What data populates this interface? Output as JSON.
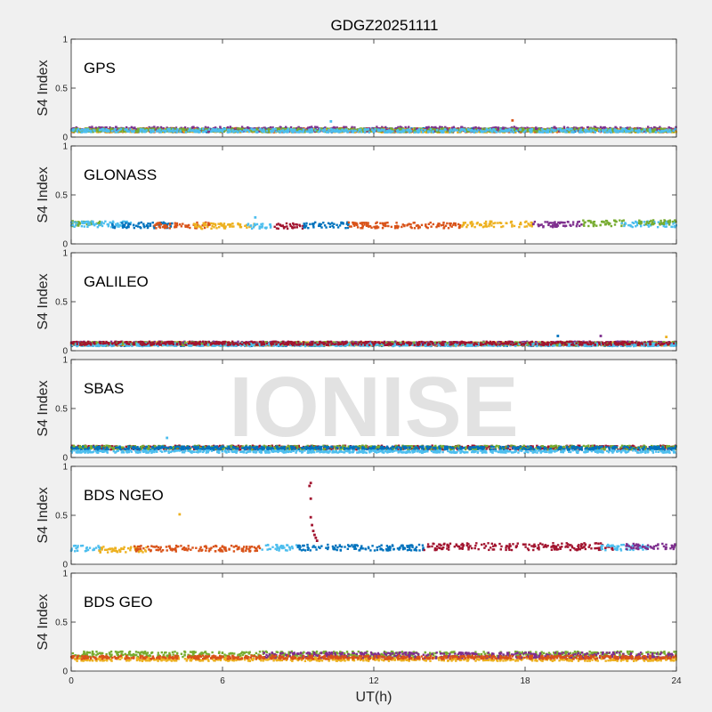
{
  "chart_data": {
    "type": "scatter",
    "title": "GDGZ20251111",
    "xlabel": "UT(h)",
    "ylabel": "S4 Index",
    "xlim": [
      0,
      24
    ],
    "ylim": [
      0,
      1
    ],
    "xticks": [
      "0",
      "6",
      "12",
      "18",
      "24"
    ],
    "yticks": [
      "0",
      "0.5",
      "1"
    ],
    "watermark": "IONISE",
    "grid": false,
    "palette": [
      "#0072bd",
      "#d95319",
      "#edb120",
      "#7e2f8e",
      "#77ac30",
      "#4dbeee",
      "#a2142f"
    ],
    "panels": [
      {
        "label": "GPS",
        "baseline": 0.07,
        "segments": [
          {
            "color": "#0072bd",
            "x": [
              0,
              24
            ],
            "mean": 0.07,
            "spread": 0.035
          },
          {
            "color": "#d95319",
            "x": [
              0,
              24
            ],
            "mean": 0.07,
            "spread": 0.035
          },
          {
            "color": "#edb120",
            "x": [
              0,
              24
            ],
            "mean": 0.065,
            "spread": 0.03
          },
          {
            "color": "#7e2f8e",
            "x": [
              0,
              24
            ],
            "mean": 0.08,
            "spread": 0.04
          },
          {
            "color": "#77ac30",
            "x": [
              0,
              24
            ],
            "mean": 0.07,
            "spread": 0.03
          },
          {
            "color": "#4dbeee",
            "x": [
              0,
              24
            ],
            "mean": 0.065,
            "spread": 0.03
          }
        ],
        "outliers": [
          {
            "x": 10.3,
            "y": 0.16,
            "color": "#4dbeee"
          },
          {
            "x": 17.5,
            "y": 0.17,
            "color": "#d95319"
          }
        ]
      },
      {
        "label": "GLONASS",
        "baseline": 0.2,
        "segments": [
          {
            "color": "#77ac30",
            "x": [
              0,
              1.2
            ],
            "mean": 0.21,
            "spread": 0.05
          },
          {
            "color": "#4dbeee",
            "x": [
              0,
              2.5
            ],
            "mean": 0.2,
            "spread": 0.05
          },
          {
            "color": "#0072bd",
            "x": [
              1.5,
              4.0
            ],
            "mean": 0.19,
            "spread": 0.05
          },
          {
            "color": "#d95319",
            "x": [
              3.3,
              5.5
            ],
            "mean": 0.19,
            "spread": 0.05
          },
          {
            "color": "#edb120",
            "x": [
              4.8,
              7.3
            ],
            "mean": 0.18,
            "spread": 0.05
          },
          {
            "color": "#4dbeee",
            "x": [
              7.0,
              8.0
            ],
            "mean": 0.18,
            "spread": 0.04
          },
          {
            "color": "#a2142f",
            "x": [
              8.0,
              9.2
            ],
            "mean": 0.18,
            "spread": 0.05
          },
          {
            "color": "#0072bd",
            "x": [
              9.2,
              11.0
            ],
            "mean": 0.19,
            "spread": 0.05
          },
          {
            "color": "#d95319",
            "x": [
              11.0,
              15.5
            ],
            "mean": 0.19,
            "spread": 0.05
          },
          {
            "color": "#edb120",
            "x": [
              15.5,
              18.3
            ],
            "mean": 0.2,
            "spread": 0.05
          },
          {
            "color": "#7e2f8e",
            "x": [
              18.3,
              20.3
            ],
            "mean": 0.2,
            "spread": 0.05
          },
          {
            "color": "#77ac30",
            "x": [
              20.3,
              22.0
            ],
            "mean": 0.21,
            "spread": 0.05
          },
          {
            "color": "#4dbeee",
            "x": [
              21.8,
              24.0
            ],
            "mean": 0.2,
            "spread": 0.05
          },
          {
            "color": "#77ac30",
            "x": [
              22.5,
              24.0
            ],
            "mean": 0.22,
            "spread": 0.04
          }
        ],
        "outliers": [
          {
            "x": 7.3,
            "y": 0.27,
            "color": "#4dbeee"
          }
        ]
      },
      {
        "label": "GALILEO",
        "baseline": 0.07,
        "segments": [
          {
            "color": "#0072bd",
            "x": [
              0,
              24
            ],
            "mean": 0.065,
            "spread": 0.03
          },
          {
            "color": "#d95319",
            "x": [
              0,
              24
            ],
            "mean": 0.07,
            "spread": 0.03
          },
          {
            "color": "#edb120",
            "x": [
              0,
              24
            ],
            "mean": 0.07,
            "spread": 0.03
          },
          {
            "color": "#7e2f8e",
            "x": [
              0,
              24
            ],
            "mean": 0.075,
            "spread": 0.03
          },
          {
            "color": "#77ac30",
            "x": [
              0,
              24
            ],
            "mean": 0.07,
            "spread": 0.03
          },
          {
            "color": "#4dbeee",
            "x": [
              0,
              24
            ],
            "mean": 0.06,
            "spread": 0.025
          },
          {
            "color": "#a2142f",
            "x": [
              0,
              24
            ],
            "mean": 0.075,
            "spread": 0.03
          }
        ],
        "outliers": [
          {
            "x": 19.3,
            "y": 0.15,
            "color": "#0072bd"
          },
          {
            "x": 21.0,
            "y": 0.15,
            "color": "#7e2f8e"
          },
          {
            "x": 23.6,
            "y": 0.14,
            "color": "#edb120"
          }
        ]
      },
      {
        "label": "SBAS",
        "baseline": 0.1,
        "segments": [
          {
            "color": "#a2142f",
            "x": [
              0,
              24
            ],
            "mean": 0.1,
            "spread": 0.035
          },
          {
            "color": "#77ac30",
            "x": [
              0,
              24
            ],
            "mean": 0.1,
            "spread": 0.035
          },
          {
            "color": "#0072bd",
            "x": [
              0,
              24
            ],
            "mean": 0.095,
            "spread": 0.03
          },
          {
            "color": "#4dbeee",
            "x": [
              0,
              24
            ],
            "mean": 0.06,
            "spread": 0.02
          }
        ],
        "outliers": [
          {
            "x": 3.8,
            "y": 0.2,
            "color": "#4dbeee"
          }
        ]
      },
      {
        "label": "BDS NGEO",
        "baseline": 0.16,
        "segments": [
          {
            "color": "#4dbeee",
            "x": [
              0,
              1.2
            ],
            "mean": 0.16,
            "spread": 0.05
          },
          {
            "color": "#edb120",
            "x": [
              1.0,
              3.0
            ],
            "mean": 0.15,
            "spread": 0.05
          },
          {
            "color": "#d95319",
            "x": [
              2.5,
              7.5
            ],
            "mean": 0.16,
            "spread": 0.05
          },
          {
            "color": "#4dbeee",
            "x": [
              7.5,
              9.0
            ],
            "mean": 0.17,
            "spread": 0.05
          },
          {
            "color": "#0072bd",
            "x": [
              9.0,
              14.0
            ],
            "mean": 0.17,
            "spread": 0.05
          },
          {
            "color": "#a2142f",
            "x": [
              14.0,
              21.5
            ],
            "mean": 0.18,
            "spread": 0.06
          },
          {
            "color": "#4dbeee",
            "x": [
              21.0,
              23.0
            ],
            "mean": 0.17,
            "spread": 0.05
          },
          {
            "color": "#7e2f8e",
            "x": [
              22.0,
              24.0
            ],
            "mean": 0.18,
            "spread": 0.05
          }
        ],
        "outliers": [
          {
            "x": 4.3,
            "y": 0.51,
            "color": "#edb120"
          },
          {
            "x": 9.5,
            "y": 0.83,
            "color": "#a2142f"
          },
          {
            "x": 9.45,
            "y": 0.8,
            "color": "#a2142f"
          },
          {
            "x": 9.5,
            "y": 0.67,
            "color": "#a2142f"
          },
          {
            "x": 9.5,
            "y": 0.48,
            "color": "#a2142f"
          },
          {
            "x": 9.55,
            "y": 0.4,
            "color": "#a2142f"
          },
          {
            "x": 9.6,
            "y": 0.34,
            "color": "#a2142f"
          },
          {
            "x": 9.65,
            "y": 0.3,
            "color": "#a2142f"
          },
          {
            "x": 9.7,
            "y": 0.27,
            "color": "#a2142f"
          },
          {
            "x": 9.75,
            "y": 0.24,
            "color": "#a2142f"
          }
        ]
      },
      {
        "label": "BDS GEO",
        "baseline": 0.15,
        "segments": [
          {
            "color": "#77ac30",
            "x": [
              0,
              24
            ],
            "mean": 0.17,
            "spread": 0.05
          },
          {
            "color": "#edb120",
            "x": [
              0,
              24
            ],
            "mean": 0.12,
            "spread": 0.03
          },
          {
            "color": "#7e2f8e",
            "x": [
              7.5,
              24
            ],
            "mean": 0.16,
            "spread": 0.05
          },
          {
            "color": "#d95319",
            "x": [
              0,
              24
            ],
            "mean": 0.14,
            "spread": 0.03
          }
        ],
        "outliers": []
      }
    ]
  }
}
